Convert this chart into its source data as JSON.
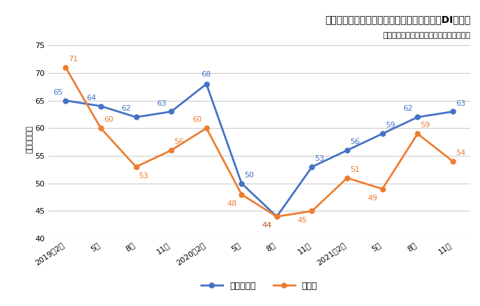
{
  "title": "建設技術者と建設技能工の労働者過不足判断DIの推移",
  "subtitle": "厚生労働省「労働経済動向調査」より作成",
  "ylabel": "（ポイント）",
  "xlabels": [
    "2019年2月",
    "5月",
    "8月",
    "11月",
    "2020年2月",
    "5月",
    "8月",
    "11月",
    "2021年2月",
    "5月",
    "8月",
    "11月"
  ],
  "series1_name": "建設技術者",
  "series1_values": [
    65,
    64,
    62,
    63,
    68,
    50,
    44,
    53,
    56,
    59,
    62,
    63
  ],
  "series1_color": "#4472C4",
  "series2_name": "技能工",
  "series2_values": [
    71,
    60,
    53,
    56,
    60,
    48,
    44,
    45,
    51,
    49,
    59,
    54
  ],
  "series2_color": "#ED7D31",
  "ylim_min": 40,
  "ylim_max": 76,
  "yticks": [
    40,
    45,
    50,
    55,
    60,
    65,
    70,
    75
  ],
  "bg_color": "#FFFFFF",
  "plot_bg_color": "#FFFFFF",
  "grid_color": "#CCCCCC",
  "marker": "o",
  "marker_size": 5,
  "line_width": 2.0,
  "label_fontsize": 8,
  "annot_fontsize": 8,
  "title_fontsize": 10,
  "subtitle_fontsize": 8
}
